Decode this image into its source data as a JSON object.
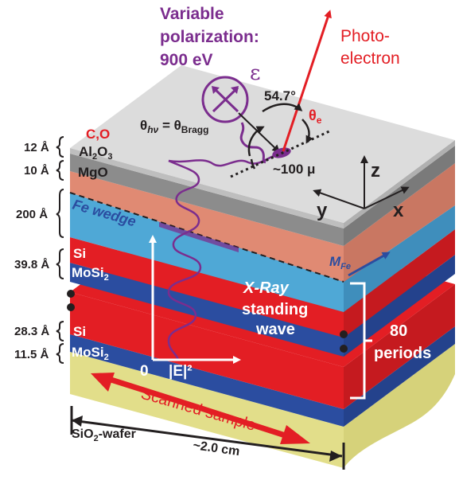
{
  "colors": {
    "purple": "#7B2D8E",
    "red_label": "#E31E24",
    "si_red": "#E31E24",
    "mosi_blue": "#2B4DA0",
    "fe_cyan": "#4FA8D6",
    "mgo_salmon": "#E08A73",
    "al2o3_gray": "#8C8C8C",
    "top_gray": "#D9D9D9",
    "wafer_yellow": "#E2DE8A",
    "dark": "#231F20",
    "white": "#FFFFFF"
  },
  "beam": {
    "line1": "Variable",
    "line2": "polarization:",
    "line3": "900 eV",
    "epsilon": "ε"
  },
  "photoelectron": {
    "line1": "Photo-",
    "line2": "electron"
  },
  "angles": {
    "magic_angle": "54.7°",
    "theta_e": "θ",
    "theta_e_sub": "e",
    "theta_hv": "θ",
    "theta_hv_sub": "hν",
    "equals": " = θ",
    "bragg_sub": "Bragg"
  },
  "spot": {
    "size": "~100 μ"
  },
  "axes": {
    "z": "z",
    "y": "y",
    "x": "x"
  },
  "layers": {
    "contamination": "C,O",
    "al2o3_main": "Al",
    "al2o3_sub2": "2",
    "al2o3_o": "O",
    "al2o3_sub3": "3",
    "mgo": "MgO",
    "fe": "Fe wedge",
    "si_top": "Si",
    "mosi_top": "MoSi",
    "mosi_top_sub": "2",
    "si_bottom": "Si",
    "mosi_bottom": "MoSi",
    "mosi_bottom_sub": "2",
    "wafer_main": "SiO",
    "wafer_sub": "2",
    "wafer_rest": "-wafer"
  },
  "thickness": {
    "al2o3": "12 Å",
    "mgo": "10 Å",
    "fe": "200 Å",
    "si_top": "39.8 Å",
    "si_bottom": "28.3 Å",
    "mosi_bottom": "11.5 Å"
  },
  "standing_wave": {
    "line1": "X-Ray",
    "line2": "standing",
    "line3": "wave",
    "zero": "0",
    "e_field": "|E|²"
  },
  "magnetization": {
    "main": "M",
    "sub": "Fe"
  },
  "periods": {
    "count": "80",
    "label": "periods"
  },
  "scan": {
    "label": "Scanned sample",
    "width": "~2.0 cm"
  }
}
